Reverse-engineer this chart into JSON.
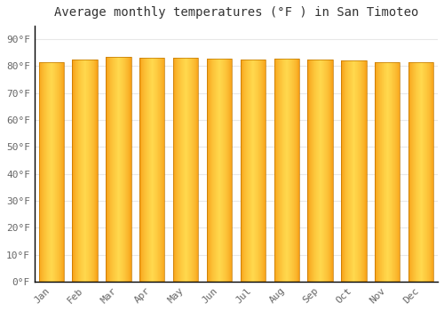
{
  "title": "Average monthly temperatures (°F ) in San Timoteo",
  "months": [
    "Jan",
    "Feb",
    "Mar",
    "Apr",
    "May",
    "Jun",
    "Jul",
    "Aug",
    "Sep",
    "Oct",
    "Nov",
    "Dec"
  ],
  "values": [
    81.5,
    82.5,
    83.5,
    83.2,
    83.2,
    82.7,
    82.5,
    82.7,
    82.5,
    82.0,
    81.5,
    81.5
  ],
  "bar_color_center": "#FFD84D",
  "bar_color_edge": "#F5920A",
  "bar_outline_color": "#C07800",
  "background_color": "#FFFFFF",
  "grid_color": "#E8E8E8",
  "bottom_spine_color": "#000000",
  "left_spine_color": "#000000",
  "yticks": [
    0,
    10,
    20,
    30,
    40,
    50,
    60,
    70,
    80,
    90
  ],
  "ylim": [
    0,
    95
  ],
  "title_fontsize": 10,
  "tick_fontsize": 8,
  "title_color": "#333333",
  "tick_color": "#666666"
}
